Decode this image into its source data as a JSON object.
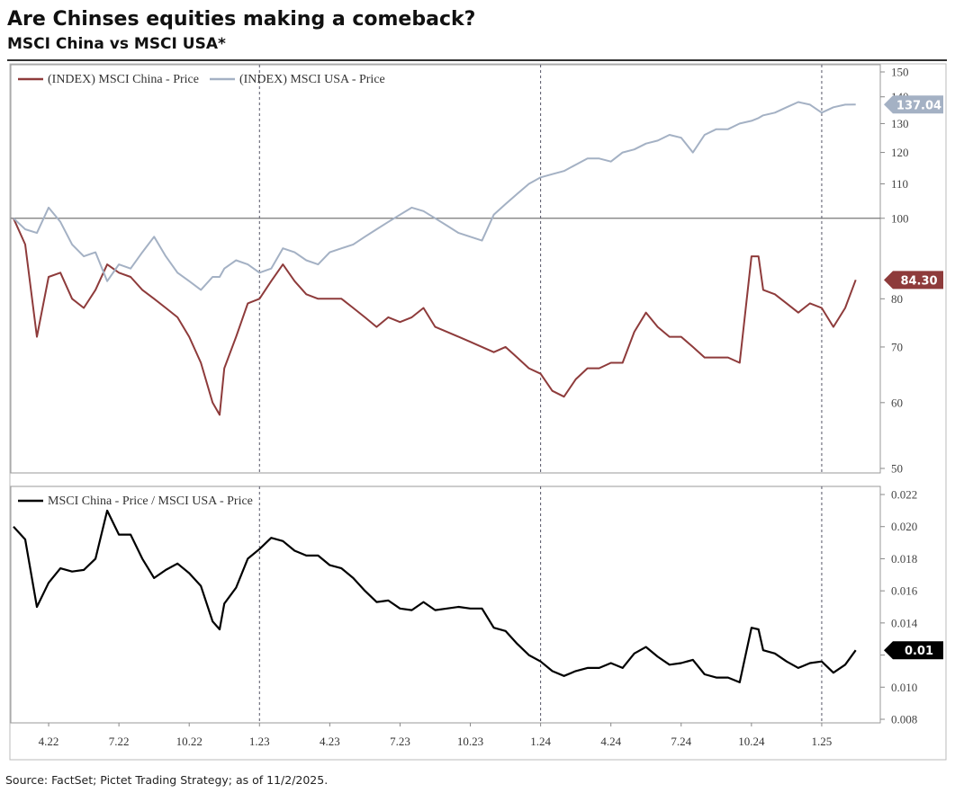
{
  "title": "Are Chinses equities making a comeback?",
  "subtitle": "MSCI China vs MSCI USA*",
  "source": "Source: FactSet; Pictet Trading Strategy; as of 11/2/2025.",
  "chart_data": [
    {
      "type": "line",
      "log_scale": true,
      "x": [
        1.5,
        2,
        2.5,
        3,
        3.5,
        4,
        4.5,
        5,
        5.5,
        6,
        6.5,
        7,
        7.5,
        8,
        8.5,
        9,
        9.5,
        10,
        10.3,
        10.5,
        11,
        11.5,
        12,
        12.5,
        13,
        13.5,
        14,
        14.5,
        15,
        15.5,
        16,
        16.5,
        17,
        17.5,
        18,
        18.5,
        19,
        19.5,
        20,
        20.5,
        21,
        21.5,
        22,
        22.5,
        23,
        23.5,
        24,
        24.5,
        25,
        25.5,
        26,
        26.5,
        27,
        27.5,
        28,
        28.5,
        29,
        29.5,
        30,
        30.5,
        31,
        31.5,
        32,
        32.5,
        33,
        33.3,
        33.5,
        34,
        34.5,
        35,
        35.5,
        36,
        36.5,
        37,
        37.45
      ],
      "xlim": [
        1.5,
        38.5
      ],
      "ylim": [
        50,
        150
      ],
      "yticks": [
        50,
        60,
        70,
        80,
        100,
        110,
        120,
        130,
        140,
        150
      ],
      "reference_line": 100,
      "vlines": [
        12,
        24,
        36
      ],
      "series": [
        {
          "name": "(INDEX) MSCI China - Price",
          "color": "#8e3b3b",
          "last_label": "84.30",
          "values": [
            100,
            93,
            72,
            85,
            86,
            80,
            78,
            82,
            88,
            86,
            85,
            82,
            80,
            78,
            76,
            72,
            67,
            60,
            58,
            66,
            72,
            79,
            80,
            84,
            88,
            84,
            81,
            80,
            80,
            80,
            78,
            76,
            74,
            76,
            75,
            76,
            78,
            74,
            73,
            72,
            71,
            70,
            69,
            70,
            68,
            66,
            65,
            62,
            61,
            64,
            66,
            66,
            67,
            67,
            73,
            77,
            74,
            72,
            72,
            70,
            68,
            68,
            68,
            67,
            90,
            90,
            82,
            81,
            79,
            77,
            79,
            78,
            74,
            78,
            84.3
          ]
        },
        {
          "name": "(INDEX) MSCI USA - Price",
          "color": "#a4b1c4",
          "last_label": "137.04",
          "values": [
            100,
            97,
            96,
            103,
            99,
            93,
            90,
            91,
            84,
            88,
            87,
            91,
            95,
            90,
            86,
            84,
            82,
            85,
            85,
            87,
            89,
            88,
            86,
            87,
            92,
            91,
            89,
            88,
            91,
            92,
            93,
            95,
            97,
            99,
            101,
            103,
            102,
            100,
            98,
            96,
            95,
            94,
            101,
            104,
            107,
            110,
            112,
            113,
            114,
            116,
            118,
            118,
            117,
            120,
            121,
            123,
            124,
            126,
            125,
            120,
            126,
            128,
            128,
            130,
            131,
            132,
            133,
            134,
            136,
            138,
            137,
            134,
            136,
            137,
            137.04
          ]
        }
      ]
    },
    {
      "type": "line",
      "log_scale": false,
      "x": [
        1.5,
        2,
        2.5,
        3,
        3.5,
        4,
        4.5,
        5,
        5.5,
        6,
        6.5,
        7,
        7.5,
        8,
        8.5,
        9,
        9.5,
        10,
        10.3,
        10.5,
        11,
        11.5,
        12,
        12.5,
        13,
        13.5,
        14,
        14.5,
        15,
        15.5,
        16,
        16.5,
        17,
        17.5,
        18,
        18.5,
        19,
        19.5,
        20,
        20.5,
        21,
        21.5,
        22,
        22.5,
        23,
        23.5,
        24,
        24.5,
        25,
        25.5,
        26,
        26.5,
        27,
        27.5,
        28,
        28.5,
        29,
        29.5,
        30,
        30.5,
        31,
        31.5,
        32,
        32.5,
        33,
        33.3,
        33.5,
        34,
        34.5,
        35,
        35.5,
        36,
        36.5,
        37,
        37.45
      ],
      "xlim": [
        1.5,
        38.5
      ],
      "xticks": [
        {
          "value": 3,
          "label": "4.22"
        },
        {
          "value": 6,
          "label": "7.22"
        },
        {
          "value": 9,
          "label": "10.22"
        },
        {
          "value": 12,
          "label": "1.23"
        },
        {
          "value": 15,
          "label": "4.23"
        },
        {
          "value": 18,
          "label": "7.23"
        },
        {
          "value": 21,
          "label": "10.23"
        },
        {
          "value": 24,
          "label": "1.24"
        },
        {
          "value": 27,
          "label": "4.24"
        },
        {
          "value": 30,
          "label": "7.24"
        },
        {
          "value": 33,
          "label": "10.24"
        },
        {
          "value": 36,
          "label": "1.25"
        }
      ],
      "ylim": [
        0.008,
        0.022
      ],
      "yticks": [
        0.008,
        {
          "value": 0.01,
          "label": "0.010"
        },
        {
          "value": 0.012,
          "label": "0.012"
        },
        0.014,
        0.016,
        0.018,
        {
          "value": 0.02,
          "label": "0.020"
        },
        0.022
      ],
      "vlines": [
        12,
        24,
        36
      ],
      "series": [
        {
          "name": "MSCI China - Price / MSCI USA - Price",
          "color": "#000000",
          "last_label": "0.01",
          "values": [
            0.02,
            0.0192,
            0.015,
            0.0165,
            0.0174,
            0.0172,
            0.0173,
            0.018,
            0.021,
            0.0195,
            0.0195,
            0.018,
            0.0168,
            0.0173,
            0.0177,
            0.0171,
            0.0163,
            0.0141,
            0.0136,
            0.0152,
            0.0162,
            0.018,
            0.0186,
            0.0193,
            0.0191,
            0.0185,
            0.0182,
            0.0182,
            0.0176,
            0.0174,
            0.0168,
            0.016,
            0.0153,
            0.0154,
            0.0149,
            0.0148,
            0.0153,
            0.0148,
            0.0149,
            0.015,
            0.0149,
            0.0149,
            0.0137,
            0.0135,
            0.0127,
            0.012,
            0.0116,
            0.011,
            0.0107,
            0.011,
            0.0112,
            0.0112,
            0.0115,
            0.0112,
            0.0121,
            0.0125,
            0.0119,
            0.0114,
            0.0115,
            0.0117,
            0.0108,
            0.0106,
            0.0106,
            0.0103,
            0.0137,
            0.0136,
            0.0123,
            0.0121,
            0.0116,
            0.0112,
            0.0115,
            0.0116,
            0.0109,
            0.0114,
            0.0123
          ]
        }
      ]
    }
  ]
}
